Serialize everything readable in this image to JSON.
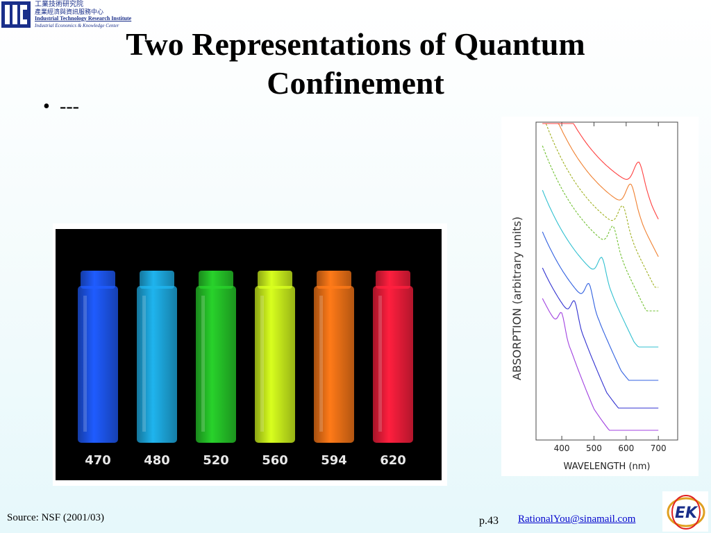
{
  "header": {
    "org_name_zh_1": "工業技術研究院",
    "org_name_zh_2": "產業經濟與資訊服務中心",
    "org_name_en_1": "Industrial Technology Research Institute",
    "org_name_en_2": "Industrial Economics & Knowledge Center"
  },
  "slide": {
    "title_line1": "Two Representations of Quantum",
    "title_line2": "Confinement",
    "bullet_text": "---"
  },
  "vials": {
    "labels": [
      "470",
      "480",
      "520",
      "560",
      "594",
      "620"
    ],
    "colors": [
      "#1f5cff",
      "#1fb4ee",
      "#28d22b",
      "#d8ff1e",
      "#ff7a18",
      "#ff1f3e"
    ]
  },
  "chart_data": {
    "type": "line",
    "xlabel": "WAVELENGTH (nm)",
    "ylabel": "ABSORPTION (arbitrary units)",
    "xticks": [
      400,
      500,
      600,
      700
    ],
    "xlim": [
      320,
      760
    ],
    "peak_nm": [
      400,
      440,
      485,
      525,
      560,
      590,
      615,
      640
    ],
    "series_colors": [
      "#a040e0",
      "#3030d0",
      "#3060e0",
      "#30c0d0",
      "#70c030",
      "#a0b020",
      "#f08030",
      "#ff4040"
    ]
  },
  "footer": {
    "source": "Source: NSF (2001/03)",
    "page": "p.43",
    "email": "RationalYou@sinamail.com"
  }
}
